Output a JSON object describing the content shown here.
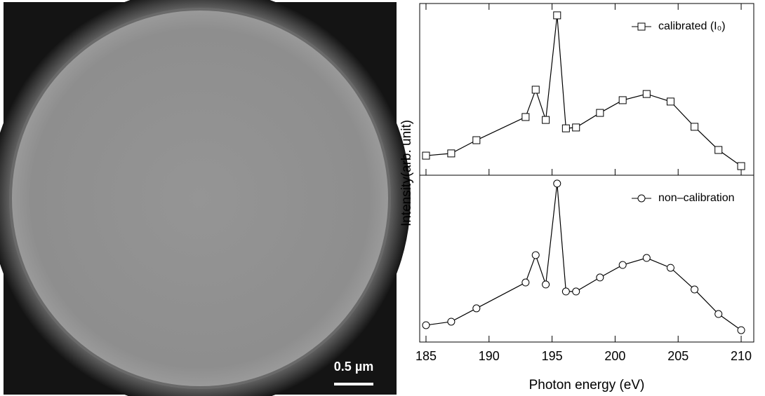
{
  "image": {
    "scale_bar_label": "0.5 µm"
  },
  "chart_data": [
    {
      "type": "line",
      "ylabel": "Intensity(arb. unit)",
      "x": [
        185,
        187,
        189,
        192.9,
        193.7,
        194.5,
        195.4,
        196.1,
        196.9,
        198.8,
        200.6,
        202.5,
        204.4,
        206.3,
        208.2,
        210
      ],
      "series": [
        {
          "name": "calibrated (I₀)",
          "color": "#000000",
          "marker": "square",
          "values": [
            11.4,
            12.7,
            20.4,
            33.9,
            49.8,
            32.2,
            93.1,
            27.3,
            27.8,
            36.3,
            43.7,
            47.3,
            42.9,
            28.2,
            14.7,
            5.3
          ]
        }
      ],
      "xlim": [
        184.5,
        211
      ],
      "xticks": [
        185,
        190,
        195,
        200,
        205,
        210
      ],
      "ylim": [
        0,
        100
      ],
      "legend": "upper right"
    },
    {
      "type": "line",
      "xlabel": "Photon energy (eV)",
      "x": [
        185,
        187,
        189,
        192.9,
        193.7,
        194.5,
        195.4,
        196.1,
        196.9,
        198.8,
        200.6,
        202.5,
        204.4,
        206.3,
        208.2,
        210
      ],
      "series": [
        {
          "name": "non–calibration",
          "color": "#000000",
          "marker": "circle",
          "values": [
            10.1,
            12.2,
            20.2,
            35.7,
            52.1,
            34.5,
            95.0,
            30.3,
            30.3,
            38.7,
            46.2,
            50.4,
            44.5,
            31.5,
            16.8,
            7.1
          ]
        }
      ],
      "xlim": [
        184.5,
        211
      ],
      "xticks": [
        185,
        190,
        195,
        200,
        205,
        210
      ],
      "ylim": [
        0,
        100
      ],
      "legend": "upper right"
    }
  ]
}
